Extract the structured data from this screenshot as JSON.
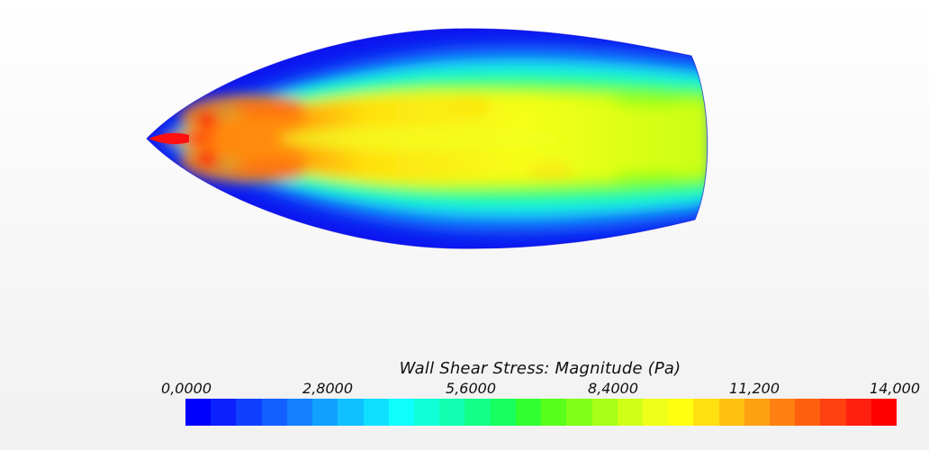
{
  "legend": {
    "title": "Wall Shear Stress: Magnitude (Pa)",
    "ticks": [
      "0,0000",
      "2,8000",
      "5,6000",
      "8,4000",
      "11,200",
      "14,000"
    ],
    "colors": [
      "#0000ff",
      "#0a20ff",
      "#1040ff",
      "#1260ff",
      "#1480ff",
      "#12a0ff",
      "#10c0ff",
      "#10e0ff",
      "#10ffff",
      "#10ffd8",
      "#10ffb0",
      "#14ff88",
      "#18ff60",
      "#30ff30",
      "#58ff18",
      "#80ff18",
      "#a8ff18",
      "#d0ff18",
      "#f0ff18",
      "#ffff10",
      "#ffe010",
      "#ffc010",
      "#ffa010",
      "#ff8010",
      "#ff6010",
      "#ff4010",
      "#ff2010",
      "#ff0000"
    ]
  },
  "contour": {
    "min_value": 0,
    "max_value": 14
  }
}
